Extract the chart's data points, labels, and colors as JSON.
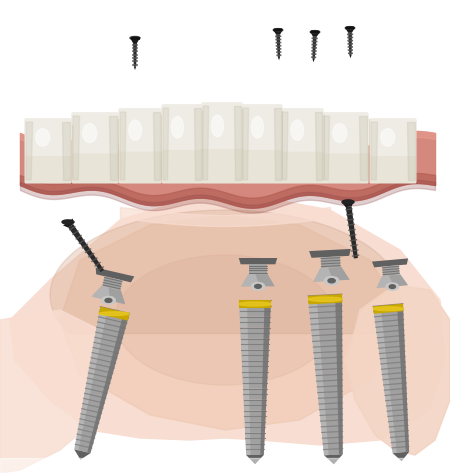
{
  "bg_color": "#ffffff",
  "gum_color": "#D4847A",
  "gum_mid": "#C97068",
  "gum_dark": "#B05A50",
  "gum_light": "#E8A090",
  "tooth_white": "#F0EEE8",
  "tooth_cream": "#E8E4D8",
  "tooth_shadow": "#C8C4B0",
  "tooth_highlight": "#FAFAF8",
  "implant_light": "#C8C8C8",
  "implant_silver": "#A0A0A0",
  "implant_mid": "#888888",
  "implant_dark": "#606060",
  "implant_thread": "#707070",
  "screw_dark": "#1A1A1A",
  "screw_mid": "#3A3A3A",
  "jaw_skin_light": "#F8DDD0",
  "jaw_skin": "#EEC8B0",
  "jaw_skin_dark": "#D4A890",
  "jaw_skin_shadow": "#C09080",
  "yellow_top": "#E8C820",
  "yellow_mid": "#C8A800",
  "yellow_dark": "#A08000",
  "figsize": [
    4.5,
    4.73
  ],
  "dpi": 100
}
